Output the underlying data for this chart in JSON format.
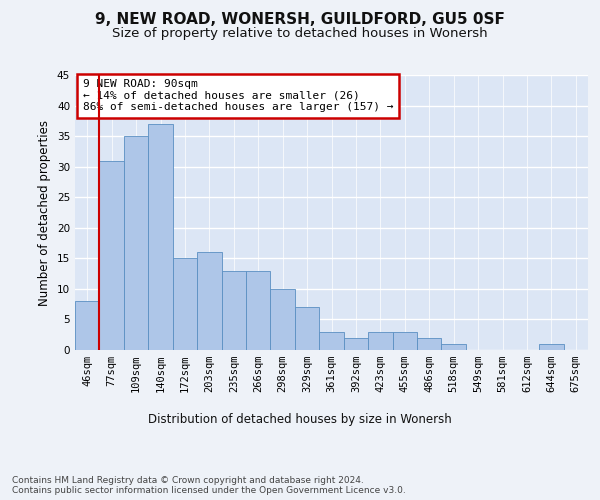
{
  "title": "9, NEW ROAD, WONERSH, GUILDFORD, GU5 0SF",
  "subtitle": "Size of property relative to detached houses in Wonersh",
  "xlabel": "Distribution of detached houses by size in Wonersh",
  "ylabel": "Number of detached properties",
  "categories": [
    "46sqm",
    "77sqm",
    "109sqm",
    "140sqm",
    "172sqm",
    "203sqm",
    "235sqm",
    "266sqm",
    "298sqm",
    "329sqm",
    "361sqm",
    "392sqm",
    "423sqm",
    "455sqm",
    "486sqm",
    "518sqm",
    "549sqm",
    "581sqm",
    "612sqm",
    "644sqm",
    "675sqm"
  ],
  "values": [
    8,
    31,
    35,
    37,
    15,
    16,
    13,
    13,
    10,
    7,
    3,
    2,
    3,
    3,
    2,
    1,
    0,
    0,
    0,
    1,
    0
  ],
  "bar_color": "#aec6e8",
  "bar_edge_color": "#5a8fc2",
  "highlight_color": "#cc0000",
  "annotation_text": "9 NEW ROAD: 90sqm\n← 14% of detached houses are smaller (26)\n86% of semi-detached houses are larger (157) →",
  "annotation_box_color": "#ffffff",
  "annotation_box_edge": "#cc0000",
  "ylim": [
    0,
    45
  ],
  "yticks": [
    0,
    5,
    10,
    15,
    20,
    25,
    30,
    35,
    40,
    45
  ],
  "footer": "Contains HM Land Registry data © Crown copyright and database right 2024.\nContains public sector information licensed under the Open Government Licence v3.0.",
  "bg_color": "#eef2f8",
  "plot_bg_color": "#dce6f5",
  "grid_color": "#ffffff",
  "title_fontsize": 11,
  "subtitle_fontsize": 9.5,
  "axis_label_fontsize": 8.5,
  "tick_fontsize": 7.5,
  "footer_fontsize": 6.5,
  "annotation_fontsize": 8
}
